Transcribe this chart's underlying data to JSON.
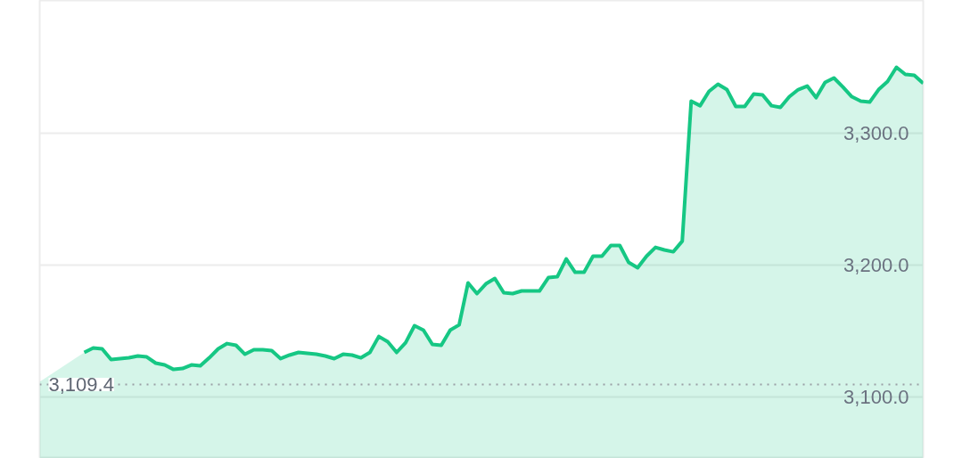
{
  "chart_data": {
    "type": "area",
    "categories": [
      null,
      null,
      null,
      null,
      null,
      null,
      null,
      null,
      null,
      null,
      null,
      null,
      null,
      null,
      null,
      null,
      null,
      null,
      null,
      null,
      null,
      null,
      null,
      null,
      null,
      null,
      null,
      null,
      null,
      null,
      null,
      null,
      null,
      null,
      null,
      null,
      null,
      null,
      null,
      null,
      null,
      null,
      null,
      null,
      null,
      null,
      null,
      null,
      null,
      null,
      null,
      null,
      null,
      null,
      null,
      null,
      null,
      null,
      null,
      null,
      null,
      null,
      null,
      null,
      null,
      null,
      null,
      null,
      null,
      null,
      null,
      null,
      null,
      null,
      null,
      null,
      null,
      null,
      null,
      null,
      null,
      null,
      null,
      null,
      null,
      null,
      null,
      null,
      null,
      null,
      null,
      null,
      null,
      null,
      null,
      null,
      null,
      null,
      null,
      null
    ],
    "series": [
      {
        "color": "#16c784",
        "values": [
          3111.5,
          null,
          null,
          null,
          null,
          3133.8,
          3137.2,
          3136.5,
          3128.4,
          3129.1,
          3129.7,
          3131.1,
          3130.4,
          3125.7,
          3124.3,
          3120.9,
          3121.6,
          3124.3,
          3123.6,
          3129.7,
          3136.5,
          3140.5,
          3139.2,
          3132.4,
          3135.8,
          3135.8,
          3135.1,
          3129.1,
          3131.8,
          3133.8,
          3133.1,
          3132.4,
          3131.1,
          3129.1,
          3132.4,
          3131.8,
          3129.7,
          3133.8,
          3145.9,
          3141.9,
          3133.8,
          3141.2,
          3154.1,
          3150.7,
          3139.9,
          3139.2,
          3150.7,
          3154.7,
          3186.5,
          3178.4,
          3185.8,
          3189.9,
          3179.1,
          3178.4,
          3180.4,
          3180.4,
          3180.4,
          3190.5,
          3191.2,
          3204.7,
          3194.6,
          3194.6,
          3206.8,
          3206.8,
          3214.9,
          3214.9,
          3202.0,
          3198.0,
          3206.8,
          3213.5,
          3211.5,
          3210.1,
          3218.2,
          3324.3,
          3320.9,
          3331.8,
          3337.2,
          3333.1,
          3320.3,
          3320.3,
          3329.7,
          3329.1,
          3320.9,
          3319.6,
          3327.7,
          3333.1,
          3335.8,
          3327.0,
          3338.5,
          3341.9,
          3335.1,
          3327.7,
          3324.3,
          3323.6,
          3333.1,
          3339.2,
          3350.0,
          3344.6,
          3343.9,
          3337.8
        ]
      }
    ],
    "ylim": [
      3053.4,
      3400.7
    ],
    "yticks": [
      {
        "value": 3100,
        "label": "3,100.0"
      },
      {
        "value": 3200,
        "label": "3,200.0"
      },
      {
        "value": 3300,
        "label": "3,300.0"
      }
    ],
    "grid": "y",
    "ref_lines": [
      {
        "axis": "y",
        "value": 3109.4,
        "label": "3,109.4",
        "line_style": "dotted",
        "color": "#9aa0a6"
      }
    ]
  }
}
